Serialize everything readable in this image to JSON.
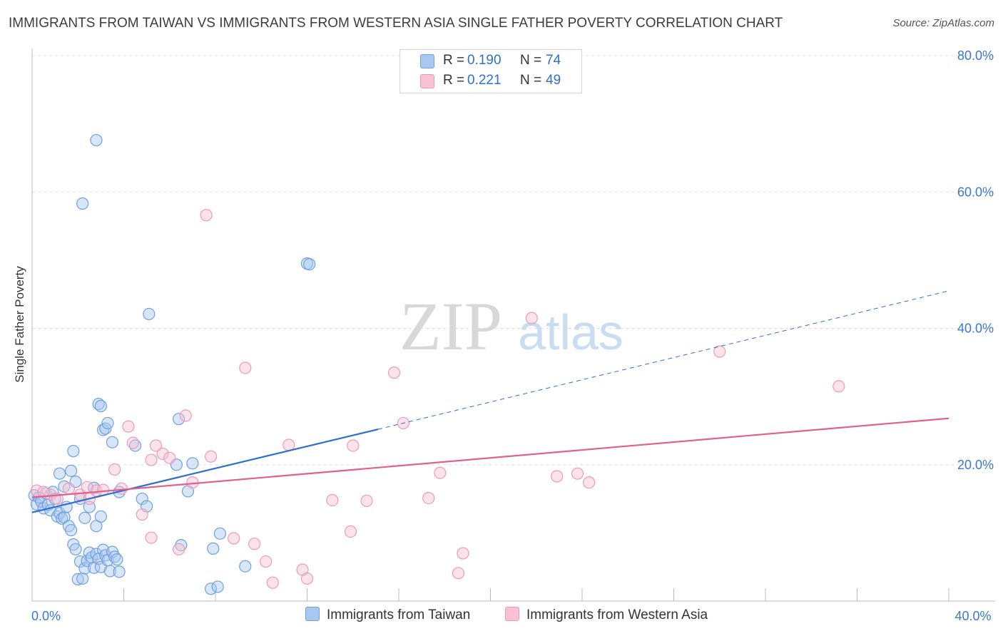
{
  "title": "IMMIGRANTS FROM TAIWAN VS IMMIGRANTS FROM WESTERN ASIA SINGLE FATHER POVERTY CORRELATION CHART",
  "source": "Source: ZipAtlas.com",
  "watermark": {
    "zip": "ZIP",
    "atlas": "atlas"
  },
  "legend_top": [
    {
      "r_label": "R =",
      "r_value": "0.190",
      "n_label": "N =",
      "n_value": "74"
    },
    {
      "r_label": "R =",
      "r_value": "0.221",
      "n_label": "N =",
      "n_value": "49"
    }
  ],
  "legend_bottom": [
    {
      "label": "Immigrants from Taiwan"
    },
    {
      "label": "Immigrants from Western Asia"
    }
  ],
  "colors": {
    "taiwan_fill": "#a9c8f0",
    "taiwan_stroke": "#6fa0e0",
    "taiwan_line": "#2d6fd0",
    "wasia_fill": "#f7c2d2",
    "wasia_stroke": "#ee9ab5",
    "wasia_line": "#e0608e",
    "tick_text": "#3a78d0",
    "grid": "#dddddd"
  },
  "chart_data": {
    "type": "scatter",
    "title": "IMMIGRANTS FROM TAIWAN VS IMMIGRANTS FROM WESTERN ASIA SINGLE FATHER POVERTY CORRELATION CHART",
    "xlabel": "",
    "ylabel": "Single Father Poverty",
    "xlim": [
      0,
      40
    ],
    "ylim": [
      0,
      80
    ],
    "x_tick_labels": [
      {
        "value": 0,
        "label": "0.0%"
      },
      {
        "value": 40,
        "label": "40.0%"
      }
    ],
    "y_tick_labels": [
      {
        "value": 20,
        "label": "20.0%"
      },
      {
        "value": 40,
        "label": "40.0%"
      },
      {
        "value": 60,
        "label": "60.0%"
      },
      {
        "value": 80,
        "label": "80.0%"
      }
    ],
    "series": [
      {
        "name": "Immigrants from Taiwan",
        "R": 0.19,
        "N": 74,
        "trend": {
          "x0": 0,
          "y0": 13.0,
          "x1": 15.1,
          "y1": 25.2,
          "dash_x1": 40,
          "dash_y1": 45.5
        },
        "points": [
          [
            0.1,
            15.5
          ],
          [
            0.2,
            14.2
          ],
          [
            0.3,
            15.2
          ],
          [
            0.4,
            14.6
          ],
          [
            0.5,
            13.6
          ],
          [
            0.6,
            15.8
          ],
          [
            0.7,
            14.1
          ],
          [
            0.8,
            13.3
          ],
          [
            0.9,
            16.0
          ],
          [
            1.0,
            15.0
          ],
          [
            1.1,
            12.4
          ],
          [
            1.2,
            12.9
          ],
          [
            1.3,
            12.1
          ],
          [
            1.4,
            12.3
          ],
          [
            1.5,
            13.8
          ],
          [
            1.6,
            11.0
          ],
          [
            1.7,
            10.4
          ],
          [
            1.8,
            8.3
          ],
          [
            1.9,
            7.6
          ],
          [
            2.0,
            3.2
          ],
          [
            2.1,
            5.8
          ],
          [
            2.2,
            3.3
          ],
          [
            2.3,
            4.8
          ],
          [
            2.4,
            5.9
          ],
          [
            2.5,
            7.1
          ],
          [
            2.6,
            6.4
          ],
          [
            2.7,
            4.9
          ],
          [
            2.8,
            6.9
          ],
          [
            2.9,
            6.2
          ],
          [
            3.0,
            5.0
          ],
          [
            3.1,
            7.5
          ],
          [
            3.2,
            6.7
          ],
          [
            3.3,
            6.0
          ],
          [
            3.4,
            4.4
          ],
          [
            3.5,
            7.2
          ],
          [
            3.6,
            6.5
          ],
          [
            3.7,
            6.1
          ],
          [
            3.8,
            4.3
          ],
          [
            1.2,
            18.7
          ],
          [
            1.4,
            16.8
          ],
          [
            1.7,
            19.1
          ],
          [
            1.8,
            22.0
          ],
          [
            1.9,
            17.5
          ],
          [
            2.1,
            15.0
          ],
          [
            2.3,
            12.2
          ],
          [
            2.5,
            13.8
          ],
          [
            2.7,
            16.6
          ],
          [
            2.8,
            11.0
          ],
          [
            3.0,
            12.4
          ],
          [
            3.1,
            25.1
          ],
          [
            3.2,
            25.3
          ],
          [
            3.3,
            26.1
          ],
          [
            3.5,
            23.3
          ],
          [
            3.8,
            16.0
          ],
          [
            4.5,
            22.8
          ],
          [
            4.8,
            15.0
          ],
          [
            5.0,
            13.9
          ],
          [
            2.9,
            28.9
          ],
          [
            3.0,
            28.6
          ],
          [
            2.2,
            58.3
          ],
          [
            2.8,
            67.6
          ],
          [
            5.1,
            42.1
          ],
          [
            12.0,
            49.5
          ],
          [
            12.1,
            49.4
          ],
          [
            6.4,
            26.7
          ],
          [
            7.0,
            20.2
          ],
          [
            6.8,
            16.1
          ],
          [
            6.3,
            20.0
          ],
          [
            6.5,
            8.2
          ],
          [
            8.2,
            9.9
          ],
          [
            7.9,
            7.7
          ],
          [
            9.3,
            5.1
          ],
          [
            7.8,
            1.8
          ],
          [
            8.1,
            2.1
          ]
        ]
      },
      {
        "name": "Immigrants from Western Asia",
        "R": 0.221,
        "N": 49,
        "trend": {
          "x0": 0,
          "y0": 15.2,
          "x1": 40,
          "y1": 26.8
        },
        "points": [
          [
            0.2,
            16.2
          ],
          [
            0.8,
            15.6
          ],
          [
            1.1,
            15.0
          ],
          [
            1.6,
            16.5
          ],
          [
            2.1,
            15.6
          ],
          [
            2.5,
            15.0
          ],
          [
            2.8,
            16.2
          ],
          [
            3.1,
            16.3
          ],
          [
            3.6,
            19.3
          ],
          [
            3.9,
            16.5
          ],
          [
            4.2,
            25.6
          ],
          [
            4.4,
            23.2
          ],
          [
            4.8,
            12.7
          ],
          [
            5.2,
            20.7
          ],
          [
            5.4,
            22.8
          ],
          [
            5.7,
            21.6
          ],
          [
            6.0,
            21.0
          ],
          [
            6.4,
            7.6
          ],
          [
            6.7,
            27.2
          ],
          [
            7.0,
            17.4
          ],
          [
            7.8,
            21.2
          ],
          [
            8.8,
            9.2
          ],
          [
            9.3,
            34.2
          ],
          [
            9.7,
            8.4
          ],
          [
            10.2,
            5.8
          ],
          [
            10.5,
            2.7
          ],
          [
            11.2,
            22.9
          ],
          [
            11.8,
            4.6
          ],
          [
            12.0,
            3.3
          ],
          [
            13.1,
            14.8
          ],
          [
            13.9,
            10.2
          ],
          [
            14.0,
            22.8
          ],
          [
            14.6,
            14.7
          ],
          [
            15.8,
            33.5
          ],
          [
            16.2,
            26.1
          ],
          [
            17.3,
            15.1
          ],
          [
            17.8,
            18.8
          ],
          [
            18.6,
            4.1
          ],
          [
            18.8,
            7.0
          ],
          [
            21.8,
            41.5
          ],
          [
            22.9,
            18.3
          ],
          [
            23.8,
            18.7
          ],
          [
            24.3,
            17.4
          ],
          [
            30.0,
            36.6
          ],
          [
            35.2,
            31.5
          ],
          [
            5.2,
            9.3
          ],
          [
            7.6,
            56.6
          ],
          [
            2.4,
            16.7
          ],
          [
            0.5,
            16.0
          ]
        ]
      }
    ],
    "legend_position": "top-center"
  }
}
